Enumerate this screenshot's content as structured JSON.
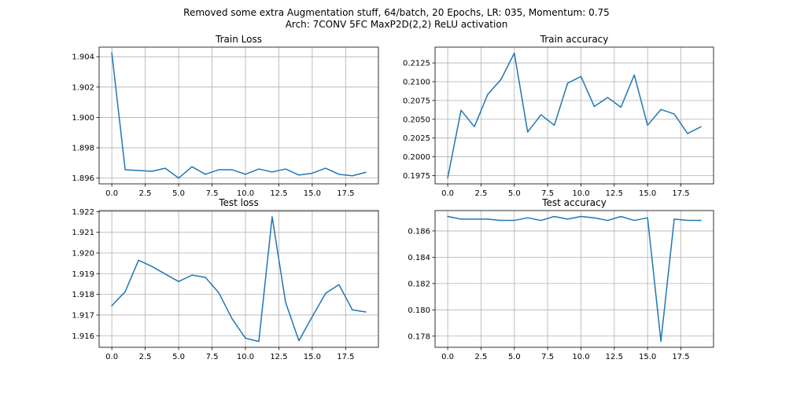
{
  "figure": {
    "title_line1": "Removed some extra Augmentation stuff, 64/batch, 20 Epochs, LR: 035, Momentum: 0.75",
    "title_line2": "Arch: 7CONV 5FC MaxP2D(2,2) ReLU activation"
  },
  "colors": {
    "series": "#1f77b4",
    "grid": "#b0b0b0"
  },
  "chart_data": [
    {
      "type": "line",
      "title": "Train Loss",
      "grid": true,
      "x": [
        0,
        1,
        2,
        3,
        4,
        5,
        6,
        7,
        8,
        9,
        10,
        11,
        12,
        13,
        14,
        15,
        16,
        17,
        18,
        19
      ],
      "y": [
        1.90425,
        1.89655,
        1.8965,
        1.89645,
        1.89665,
        1.896,
        1.89675,
        1.89625,
        1.89655,
        1.89655,
        1.89625,
        1.8966,
        1.8964,
        1.8966,
        1.8962,
        1.89632,
        1.89665,
        1.89625,
        1.89615,
        1.89638
      ],
      "xlim": [
        -0.95,
        19.95
      ],
      "ylim": [
        1.89562,
        1.90463
      ],
      "xticks": [
        0,
        2.5,
        5,
        7.5,
        10,
        12.5,
        15,
        17.5
      ],
      "xtick_labels": [
        "0.0",
        "2.5",
        "5.0",
        "7.5",
        "10.0",
        "12.5",
        "15.0",
        "17.5"
      ],
      "yticks": [
        1.896,
        1.898,
        1.9,
        1.902,
        1.904
      ],
      "ytick_labels": [
        "1.896",
        "1.898",
        "1.900",
        "1.902",
        "1.904"
      ]
    },
    {
      "type": "line",
      "title": "Train accuracy",
      "grid": true,
      "x": [
        0,
        1,
        2,
        3,
        4,
        5,
        6,
        7,
        8,
        9,
        10,
        11,
        12,
        13,
        14,
        15,
        16,
        17,
        18,
        19
      ],
      "y": [
        0.1972,
        0.2062,
        0.204,
        0.2083,
        0.2103,
        0.2138,
        0.2033,
        0.2056,
        0.2042,
        0.2098,
        0.2107,
        0.2067,
        0.2079,
        0.2066,
        0.2109,
        0.2042,
        0.2063,
        0.2057,
        0.2031,
        0.204
      ],
      "xlim": [
        -0.95,
        19.95
      ],
      "ylim": [
        0.1964,
        0.2146
      ],
      "xticks": [
        0,
        2.5,
        5,
        7.5,
        10,
        12.5,
        15,
        17.5
      ],
      "xtick_labels": [
        "0.0",
        "2.5",
        "5.0",
        "7.5",
        "10.0",
        "12.5",
        "15.0",
        "17.5"
      ],
      "yticks": [
        0.1975,
        0.2,
        0.2025,
        0.205,
        0.2075,
        0.21,
        0.2125
      ],
      "ytick_labels": [
        "0.1975",
        "0.2000",
        "0.2025",
        "0.2050",
        "0.2075",
        "0.2100",
        "0.2125"
      ]
    },
    {
      "type": "line",
      "title": "Test loss",
      "grid": true,
      "x": [
        0,
        1,
        2,
        3,
        4,
        5,
        6,
        7,
        8,
        9,
        10,
        11,
        12,
        13,
        14,
        15,
        16,
        17,
        18,
        19
      ],
      "y": [
        1.91745,
        1.91813,
        1.91965,
        1.91935,
        1.91898,
        1.91862,
        1.91893,
        1.91882,
        1.91808,
        1.91682,
        1.91588,
        1.91572,
        1.92175,
        1.91762,
        1.91576,
        1.91692,
        1.91805,
        1.91847,
        1.91725,
        1.91715
      ],
      "xlim": [
        -0.95,
        19.95
      ],
      "ylim": [
        1.91544,
        1.92205
      ],
      "xticks": [
        0,
        2.5,
        5,
        7.5,
        10,
        12.5,
        15,
        17.5
      ],
      "xtick_labels": [
        "0.0",
        "2.5",
        "5.0",
        "7.5",
        "10.0",
        "12.5",
        "15.0",
        "17.5"
      ],
      "yticks": [
        1.916,
        1.917,
        1.918,
        1.919,
        1.92,
        1.921,
        1.922
      ],
      "ytick_labels": [
        "1.916",
        "1.917",
        "1.918",
        "1.919",
        "1.920",
        "1.921",
        "1.922"
      ]
    },
    {
      "type": "line",
      "title": "Test accuracy",
      "grid": true,
      "x": [
        0,
        1,
        2,
        3,
        4,
        5,
        6,
        7,
        8,
        9,
        10,
        11,
        12,
        13,
        14,
        15,
        16,
        17,
        18,
        19
      ],
      "y": [
        0.1871,
        0.1869,
        0.1869,
        0.1869,
        0.1868,
        0.1868,
        0.187,
        0.1868,
        0.1871,
        0.1869,
        0.1871,
        0.187,
        0.1868,
        0.1871,
        0.1868,
        0.187,
        0.1776,
        0.1869,
        0.1868,
        0.1868
      ],
      "xlim": [
        -0.95,
        19.95
      ],
      "ylim": [
        0.17715,
        0.18755
      ],
      "xticks": [
        0,
        2.5,
        5,
        7.5,
        10,
        12.5,
        15,
        17.5
      ],
      "xtick_labels": [
        "0.0",
        "2.5",
        "5.0",
        "7.5",
        "10.0",
        "12.5",
        "15.0",
        "17.5"
      ],
      "yticks": [
        0.178,
        0.18,
        0.182,
        0.184,
        0.186
      ],
      "ytick_labels": [
        "0.178",
        "0.180",
        "0.182",
        "0.184",
        "0.186"
      ]
    }
  ]
}
